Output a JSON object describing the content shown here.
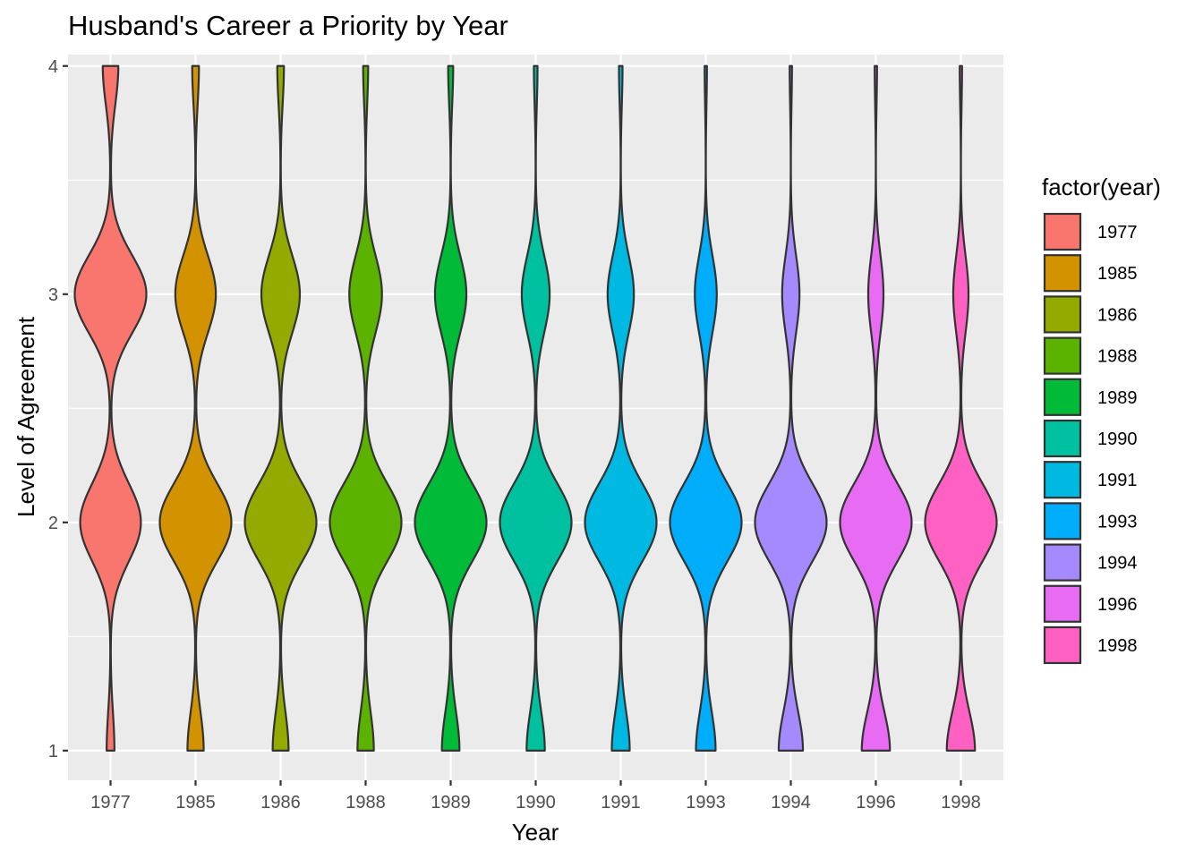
{
  "chart_data": {
    "type": "violin",
    "title": "Husband's Career a Priority by Year",
    "xlabel": "Year",
    "ylabel": "Level of Agreement",
    "ylim": [
      0.87,
      4.05
    ],
    "yticks": [
      1,
      2,
      3,
      4
    ],
    "grid": true,
    "legend": {
      "title": "factor(year)",
      "placement": "right"
    },
    "categories": [
      "1977",
      "1985",
      "1986",
      "1988",
      "1989",
      "1990",
      "1991",
      "1993",
      "1994",
      "1996",
      "1998"
    ],
    "colors": [
      "#F8766D",
      "#D39200",
      "#93AA00",
      "#5BB300",
      "#00BA38",
      "#00C19F",
      "#00B9E3",
      "#00ADFA",
      "#A58AFF",
      "#E76BF3",
      "#FF61C3"
    ],
    "series": [
      {
        "name": "1977",
        "level_share": {
          "1": 0.05,
          "2": 0.39,
          "3": 0.46,
          "4": 0.1
        }
      },
      {
        "name": "1985",
        "level_share": {
          "1": 0.12,
          "2": 0.53,
          "3": 0.3,
          "4": 0.05
        }
      },
      {
        "name": "1986",
        "level_share": {
          "1": 0.12,
          "2": 0.54,
          "3": 0.29,
          "4": 0.05
        }
      },
      {
        "name": "1988",
        "level_share": {
          "1": 0.13,
          "2": 0.57,
          "3": 0.26,
          "4": 0.04
        }
      },
      {
        "name": "1989",
        "level_share": {
          "1": 0.14,
          "2": 0.57,
          "3": 0.25,
          "4": 0.04
        }
      },
      {
        "name": "1990",
        "level_share": {
          "1": 0.15,
          "2": 0.59,
          "3": 0.23,
          "4": 0.03
        }
      },
      {
        "name": "1991",
        "level_share": {
          "1": 0.15,
          "2": 0.6,
          "3": 0.22,
          "4": 0.03
        }
      },
      {
        "name": "1993",
        "level_share": {
          "1": 0.17,
          "2": 0.62,
          "3": 0.19,
          "4": 0.02
        }
      },
      {
        "name": "1994",
        "level_share": {
          "1": 0.21,
          "2": 0.62,
          "3": 0.15,
          "4": 0.02
        }
      },
      {
        "name": "1996",
        "level_share": {
          "1": 0.24,
          "2": 0.61,
          "3": 0.13,
          "4": 0.02
        }
      },
      {
        "name": "1998",
        "level_share": {
          "1": 0.24,
          "2": 0.61,
          "3": 0.13,
          "4": 0.02
        }
      }
    ]
  }
}
